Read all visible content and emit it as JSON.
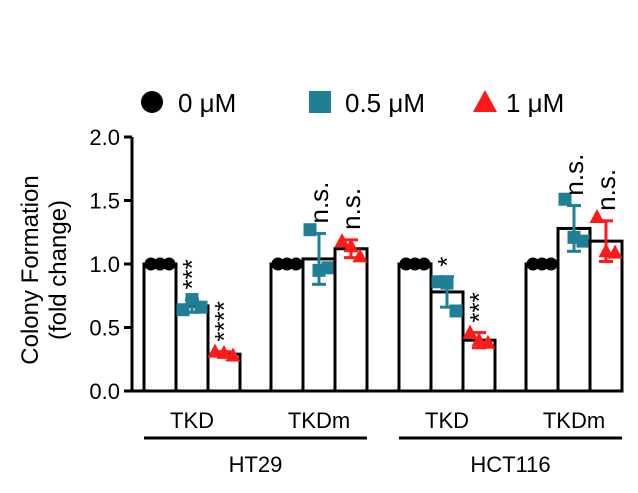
{
  "chart_data": {
    "type": "bar",
    "title": "",
    "ylabel_line1": "Colony Formation",
    "ylabel_line2": "(fold change)",
    "ylim": [
      0,
      2.0
    ],
    "yticks": [
      "0.0",
      "0.5",
      "1.0",
      "1.5",
      "2.0"
    ],
    "legend_position": "top",
    "legend": [
      {
        "label": "0 μM",
        "marker": "circle",
        "color": "#000000"
      },
      {
        "label": "0.5 μM",
        "marker": "square",
        "color": "#1f7f95"
      },
      {
        "label": "1 μM",
        "marker": "triangle",
        "color": "#ff1a1a"
      }
    ],
    "cell_lines": [
      "HT29",
      "HCT116"
    ],
    "conditions": [
      "TKD",
      "TKDm"
    ],
    "groups": [
      {
        "cell_line": "HT29",
        "condition": "TKD",
        "bars": [
          {
            "series": "0 μM",
            "value": 1.0,
            "error": 0,
            "points": [
              1.0,
              1.0,
              1.0
            ],
            "sig": ""
          },
          {
            "series": "0.5 μM",
            "value": 0.67,
            "error": 0.05,
            "points": [
              0.64,
              0.72,
              0.66
            ],
            "sig": "***"
          },
          {
            "series": "1 μM",
            "value": 0.29,
            "error": 0.02,
            "points": [
              0.31,
              0.3,
              0.28
            ],
            "sig": "****"
          }
        ]
      },
      {
        "cell_line": "HT29",
        "condition": "TKDm",
        "bars": [
          {
            "series": "0 μM",
            "value": 1.0,
            "error": 0,
            "points": [
              1.0,
              1.0,
              1.0
            ],
            "sig": ""
          },
          {
            "series": "0.5 μM",
            "value": 1.04,
            "error": 0.2,
            "points": [
              1.27,
              0.95,
              0.97
            ],
            "sig": "n.s."
          },
          {
            "series": "1 μM",
            "value": 1.12,
            "error": 0.07,
            "points": [
              1.18,
              1.14,
              1.06
            ],
            "sig": "n.s."
          }
        ]
      },
      {
        "cell_line": "HCT116",
        "condition": "TKD",
        "bars": [
          {
            "series": "0 μM",
            "value": 1.0,
            "error": 0,
            "points": [
              1.0,
              1.0,
              1.0
            ],
            "sig": ""
          },
          {
            "series": "0.5 μM",
            "value": 0.78,
            "error": 0.12,
            "points": [
              0.86,
              0.85,
              0.63
            ],
            "sig": "*"
          },
          {
            "series": "1 μM",
            "value": 0.4,
            "error": 0.06,
            "points": [
              0.46,
              0.4,
              0.38
            ],
            "sig": "***"
          }
        ]
      },
      {
        "cell_line": "HCT116",
        "condition": "TKDm",
        "bars": [
          {
            "series": "0 μM",
            "value": 1.0,
            "error": 0,
            "points": [
              1.0,
              1.0,
              1.0
            ],
            "sig": ""
          },
          {
            "series": "0.5 μM",
            "value": 1.28,
            "error": 0.18,
            "points": [
              1.51,
              1.21,
              1.18
            ],
            "sig": "n.s."
          },
          {
            "series": "1 μM",
            "value": 1.18,
            "error": 0.16,
            "points": [
              1.37,
              1.1,
              1.09
            ],
            "sig": "n.s."
          }
        ]
      }
    ]
  }
}
